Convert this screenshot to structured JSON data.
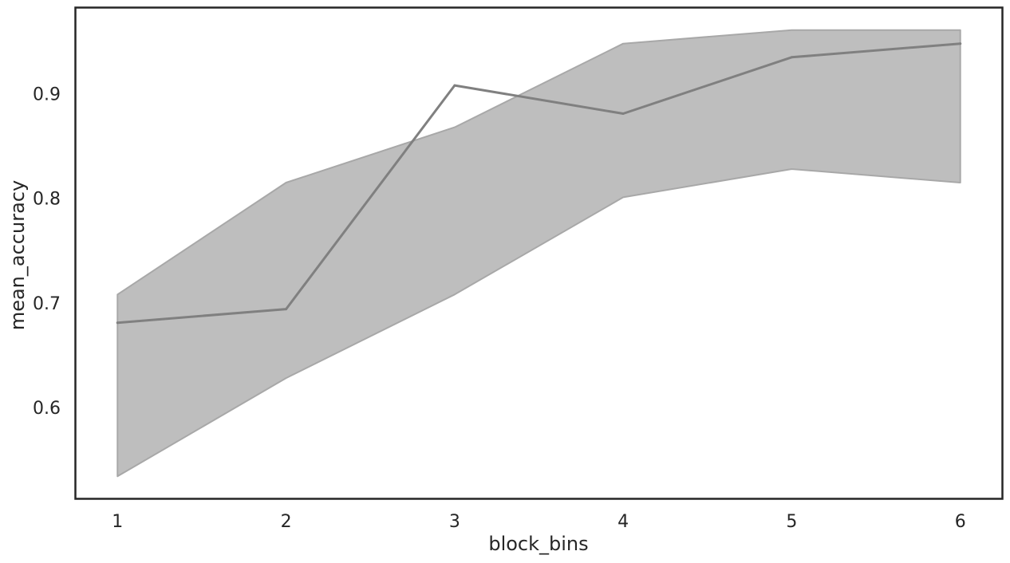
{
  "chart_data": {
    "type": "line",
    "title": "",
    "xlabel": "block_bins",
    "ylabel": "mean_accuracy",
    "x": [
      1,
      2,
      3,
      4,
      5,
      6
    ],
    "series": [
      {
        "name": "mean_accuracy",
        "values": [
          0.681,
          0.694,
          0.908,
          0.881,
          0.935,
          0.948
        ],
        "ci_lower": [
          0.534,
          0.628,
          0.708,
          0.801,
          0.828,
          0.815
        ],
        "ci_upper": [
          0.708,
          0.815,
          0.868,
          0.948,
          0.961,
          0.961
        ]
      }
    ],
    "xticks": [
      "1",
      "2",
      "3",
      "4",
      "5",
      "6"
    ],
    "yticks": [
      "0.6",
      "0.7",
      "0.8",
      "0.9"
    ],
    "ytick_values": [
      0.6,
      0.7,
      0.8,
      0.9
    ],
    "xlim": [
      0.75,
      6.25
    ],
    "ylim": [
      0.5125,
      0.9825
    ],
    "grid": false,
    "legend": "none",
    "colors": {
      "line": "#808080",
      "band": "#bebebe",
      "band_edge": "#a8a8a8",
      "frame": "#262626",
      "text": "#262626"
    }
  }
}
